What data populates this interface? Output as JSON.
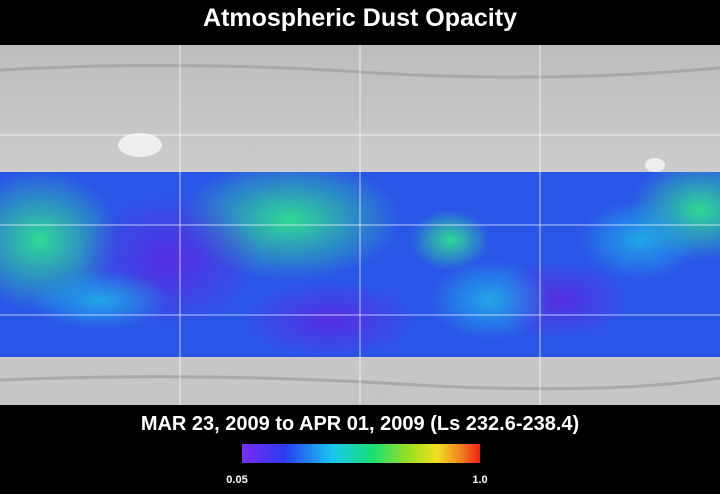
{
  "header": {
    "title": "Atmospheric Dust Opacity"
  },
  "date_range": "MAR 23, 2009 to APR 01, 2009 (Ls 232.6-238.4)",
  "colorbar": {
    "min_label": "0.05",
    "max_label": "1.0"
  }
}
